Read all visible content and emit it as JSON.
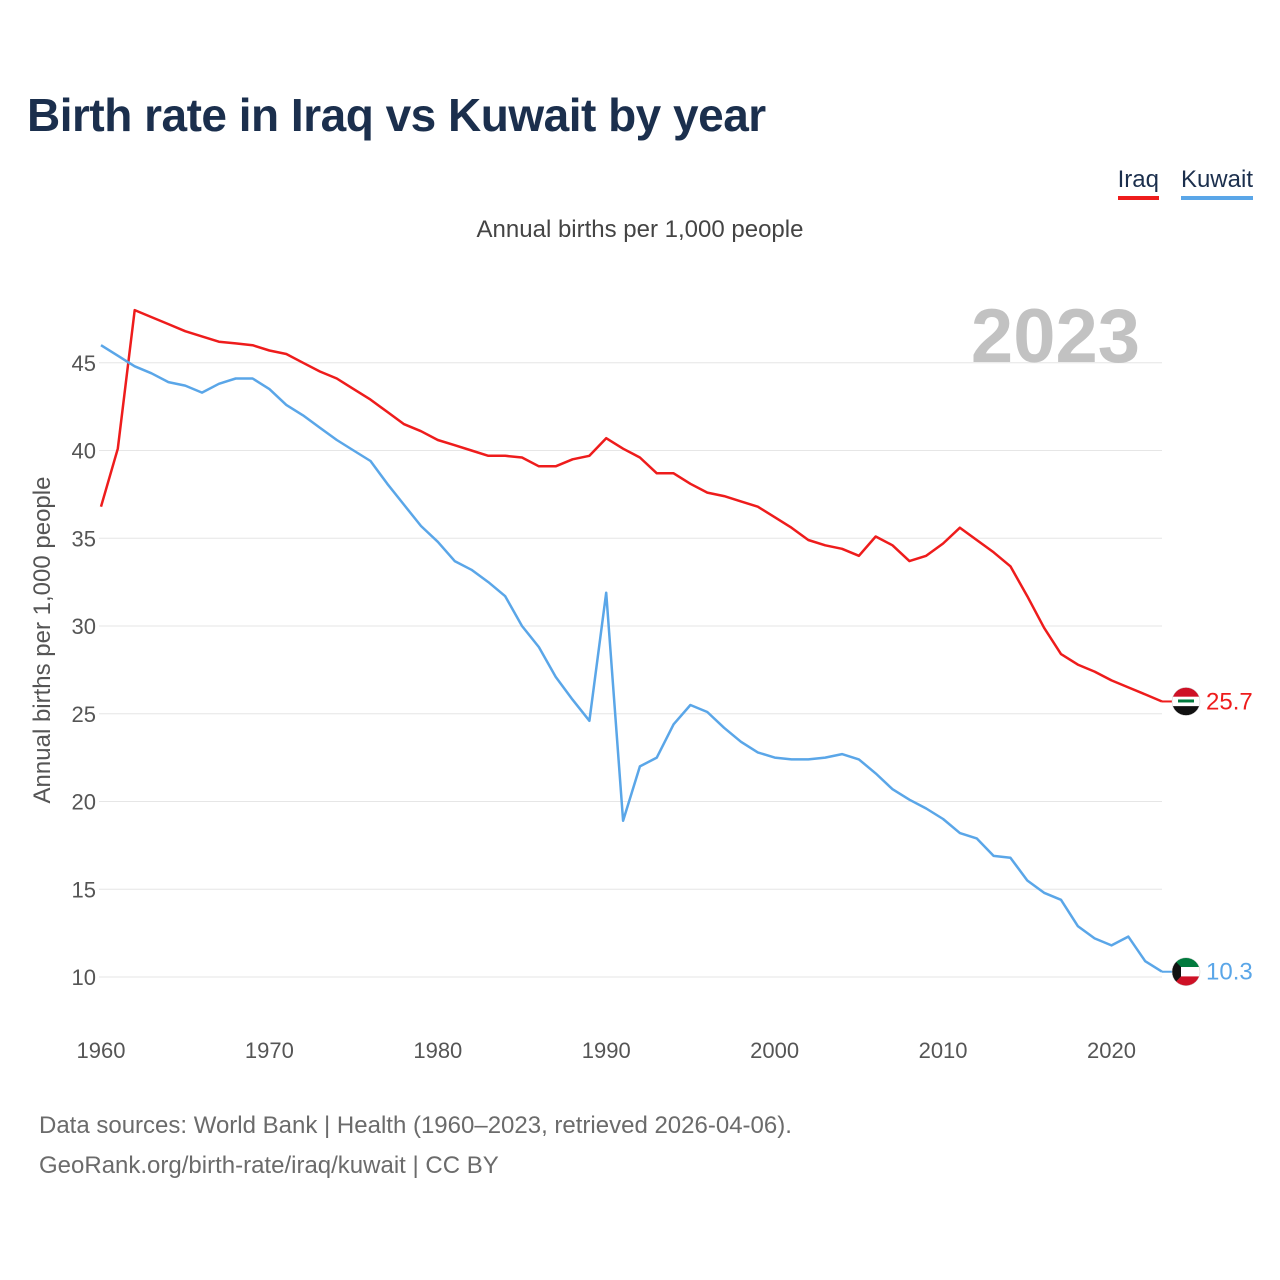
{
  "title": "Birth rate in Iraq vs Kuwait by year",
  "subtitle": "Annual births per 1,000 people",
  "legend": [
    {
      "label": "Iraq",
      "color": "#ee1c1c"
    },
    {
      "label": "Kuwait",
      "color": "#5aa6e8"
    }
  ],
  "footer": {
    "line1": "Data sources: World Bank | Health (1960–2023, retrieved 2026-04-06).",
    "line2": "GeoRank.org/birth-rate/iraq/kuwait | CC BY"
  },
  "chart_data": {
    "type": "line",
    "title": "Birth rate in Iraq vs Kuwait by year",
    "ylabel": "Annual births per 1,000 people",
    "xlabel": "",
    "current_year": "2023",
    "xlim": [
      1960,
      2023
    ],
    "ylim": [
      8,
      49
    ],
    "x_ticks": [
      1960,
      1970,
      1980,
      1990,
      2000,
      2010,
      2020
    ],
    "y_ticks": [
      10,
      15,
      20,
      25,
      30,
      35,
      40,
      45
    ],
    "grid": true,
    "x": [
      1960,
      1961,
      1962,
      1963,
      1964,
      1965,
      1966,
      1967,
      1968,
      1969,
      1970,
      1971,
      1972,
      1973,
      1974,
      1975,
      1976,
      1977,
      1978,
      1979,
      1980,
      1981,
      1982,
      1983,
      1984,
      1985,
      1986,
      1987,
      1988,
      1989,
      1990,
      1991,
      1992,
      1993,
      1994,
      1995,
      1996,
      1997,
      1998,
      1999,
      2000,
      2001,
      2002,
      2003,
      2004,
      2005,
      2006,
      2007,
      2008,
      2009,
      2010,
      2011,
      2012,
      2013,
      2014,
      2015,
      2016,
      2017,
      2018,
      2019,
      2020,
      2021,
      2022,
      2023
    ],
    "series": [
      {
        "name": "Iraq",
        "color": "#ee1c1c",
        "end_label": "25.7",
        "flag": "iraq-flag",
        "values": [
          36.8,
          40.1,
          48.0,
          47.6,
          47.2,
          46.8,
          46.5,
          46.2,
          46.1,
          46.0,
          45.7,
          45.5,
          45.0,
          44.5,
          44.1,
          43.5,
          42.9,
          42.2,
          41.5,
          41.1,
          40.6,
          40.3,
          40.0,
          39.7,
          39.7,
          39.6,
          39.1,
          39.1,
          39.5,
          39.7,
          40.7,
          40.1,
          39.6,
          38.7,
          38.7,
          38.1,
          37.6,
          37.4,
          37.1,
          36.8,
          36.2,
          35.6,
          34.9,
          34.6,
          34.4,
          34.0,
          35.1,
          34.6,
          33.7,
          34.0,
          34.7,
          35.6,
          34.9,
          34.2,
          33.4,
          31.7,
          29.9,
          28.4,
          27.8,
          27.4,
          26.9,
          26.5,
          26.1,
          25.7
        ]
      },
      {
        "name": "Kuwait",
        "color": "#5aa6e8",
        "end_label": "10.3",
        "flag": "kuwait-flag",
        "values": [
          46.0,
          45.4,
          44.8,
          44.4,
          43.9,
          43.7,
          43.3,
          43.8,
          44.1,
          44.1,
          43.5,
          42.6,
          42.0,
          41.3,
          40.6,
          40.0,
          39.4,
          38.1,
          36.9,
          35.7,
          34.8,
          33.7,
          33.2,
          32.5,
          31.7,
          30.0,
          28.8,
          27.1,
          25.8,
          24.6,
          31.9,
          18.9,
          22.0,
          22.5,
          24.4,
          25.5,
          25.1,
          24.2,
          23.4,
          22.8,
          22.5,
          22.4,
          22.4,
          22.5,
          22.7,
          22.4,
          21.6,
          20.7,
          20.1,
          19.6,
          19.0,
          18.2,
          17.9,
          16.9,
          16.8,
          15.5,
          14.8,
          14.4,
          12.9,
          12.2,
          11.8,
          12.3,
          10.9,
          10.3
        ]
      }
    ]
  }
}
